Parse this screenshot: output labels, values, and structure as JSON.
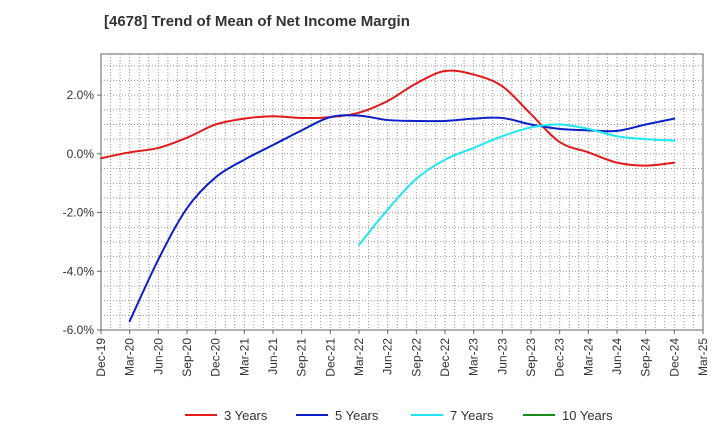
{
  "chart_data": {
    "type": "line",
    "title": "[4678]  Trend of Mean of Net Income Margin",
    "xlabel": "",
    "ylabel": "",
    "x_ticks": [
      "Dec-19",
      "Mar-20",
      "Jun-20",
      "Sep-20",
      "Dec-20",
      "Mar-21",
      "Jun-21",
      "Sep-21",
      "Dec-21",
      "Mar-22",
      "Jun-22",
      "Sep-22",
      "Dec-22",
      "Mar-23",
      "Jun-23",
      "Sep-23",
      "Dec-23",
      "Mar-24",
      "Jun-24",
      "Sep-24",
      "Dec-24",
      "Mar-25"
    ],
    "y_ticks": [
      "2.0%",
      "0.0%",
      "-2.0%",
      "-4.0%",
      "-6.0%"
    ],
    "ylim": [
      -6.0,
      3.4
    ],
    "grid": true,
    "legend_position": "bottom",
    "series": [
      {
        "name": "3 Years",
        "color": "#e31a1c",
        "x": [
          "Dec-19",
          "Mar-20",
          "Jun-20",
          "Sep-20",
          "Dec-20",
          "Mar-21",
          "Jun-21",
          "Sep-21",
          "Dec-21",
          "Mar-22",
          "Jun-22",
          "Sep-22",
          "Dec-22",
          "Mar-23",
          "Jun-23",
          "Sep-23",
          "Dec-23",
          "Mar-24",
          "Jun-24",
          "Sep-24",
          "Dec-24"
        ],
        "values": [
          -0.15,
          0.05,
          0.2,
          0.55,
          1.0,
          1.2,
          1.28,
          1.22,
          1.25,
          1.4,
          1.8,
          2.4,
          2.82,
          2.7,
          2.3,
          1.35,
          0.4,
          0.05,
          -0.3,
          -0.4,
          -0.3
        ]
      },
      {
        "name": "5 Years",
        "color": "#0c1fc8",
        "x": [
          "Mar-20",
          "Jun-20",
          "Sep-20",
          "Dec-20",
          "Mar-21",
          "Jun-21",
          "Sep-21",
          "Dec-21",
          "Mar-22",
          "Jun-22",
          "Sep-22",
          "Dec-22",
          "Mar-23",
          "Jun-23",
          "Sep-23",
          "Dec-23",
          "Mar-24",
          "Jun-24",
          "Sep-24",
          "Dec-24"
        ],
        "values": [
          -5.7,
          -3.6,
          -1.85,
          -0.8,
          -0.2,
          0.3,
          0.8,
          1.25,
          1.3,
          1.15,
          1.12,
          1.12,
          1.2,
          1.22,
          1.0,
          0.85,
          0.8,
          0.78,
          1.0,
          1.2
        ]
      },
      {
        "name": "7 Years",
        "color": "#20e8f0",
        "x": [
          "Mar-22",
          "Jun-22",
          "Sep-22",
          "Dec-22",
          "Mar-23",
          "Jun-23",
          "Sep-23",
          "Dec-23",
          "Mar-24",
          "Jun-24",
          "Sep-24",
          "Dec-24"
        ],
        "values": [
          -3.1,
          -1.9,
          -0.85,
          -0.2,
          0.2,
          0.6,
          0.9,
          1.0,
          0.85,
          0.6,
          0.5,
          0.45
        ]
      },
      {
        "name": "10 Years",
        "color": "#1a8a1a",
        "x": [],
        "values": []
      }
    ]
  }
}
